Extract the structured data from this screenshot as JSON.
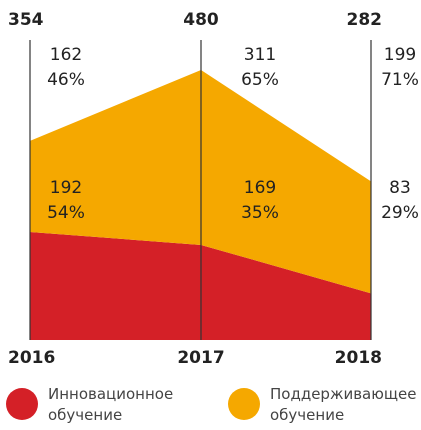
{
  "chart_data": {
    "type": "stacked-area",
    "categories": [
      "2016",
      "2017",
      "2018"
    ],
    "totals": [
      354,
      480,
      282
    ],
    "series": [
      {
        "name": "Инновационное обучение",
        "color": "#d42027",
        "values": [
          192,
          169,
          83
        ],
        "shares": [
          "54%",
          "35%",
          "29%"
        ]
      },
      {
        "name": "Поддерживающее обучение",
        "color": "#f5a800",
        "values": [
          162,
          311,
          199
        ],
        "shares": [
          "46%",
          "65%",
          "71%"
        ]
      }
    ]
  }
}
